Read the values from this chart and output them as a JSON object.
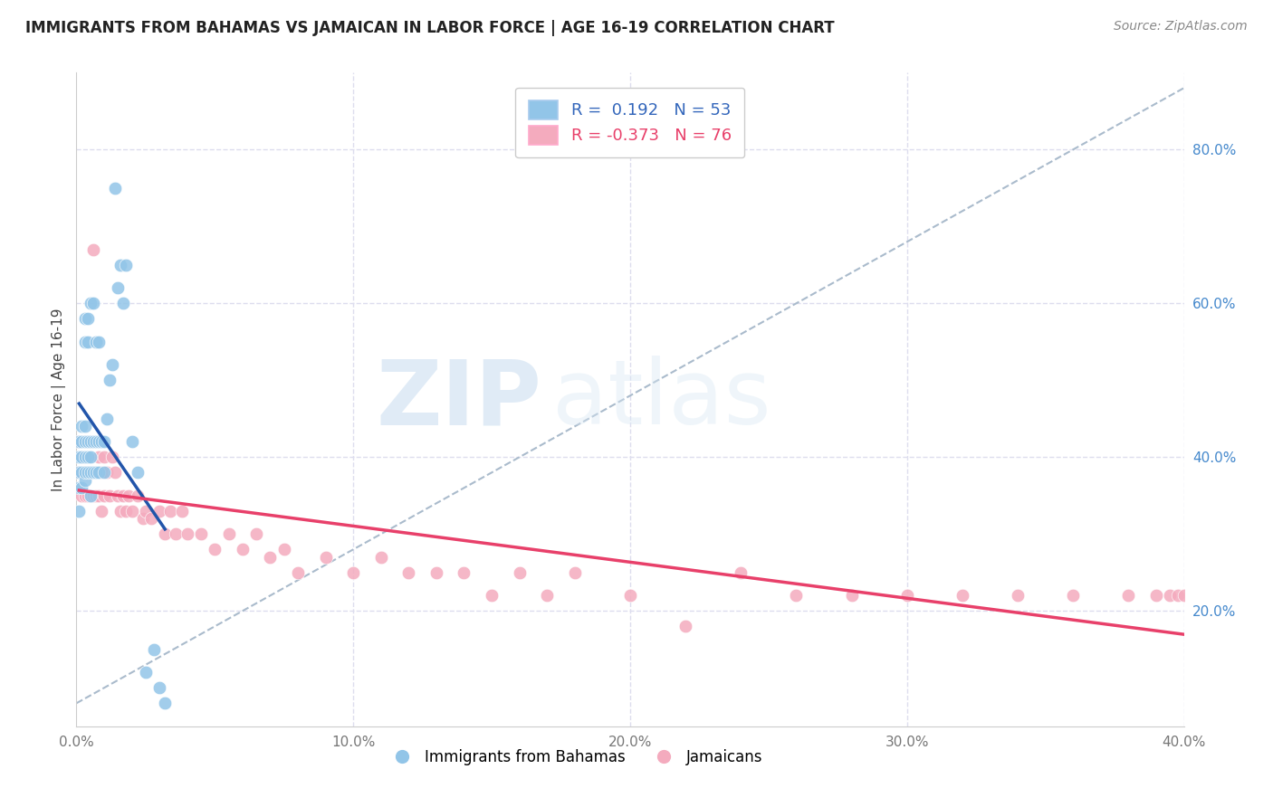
{
  "title": "IMMIGRANTS FROM BAHAMAS VS JAMAICAN IN LABOR FORCE | AGE 16-19 CORRELATION CHART",
  "source": "Source: ZipAtlas.com",
  "ylabel": "In Labor Force | Age 16-19",
  "xlim": [
    0.0,
    0.4
  ],
  "ylim": [
    0.05,
    0.9
  ],
  "xticks": [
    0.0,
    0.1,
    0.2,
    0.3,
    0.4
  ],
  "xtick_labels": [
    "0.0%",
    "10.0%",
    "20.0%",
    "30.0%",
    "40.0%"
  ],
  "yticks_right": [
    0.2,
    0.4,
    0.6,
    0.8
  ],
  "ytick_right_labels": [
    "20.0%",
    "40.0%",
    "60.0%",
    "80.0%"
  ],
  "legend_r_blue": "0.192",
  "legend_n_blue": "53",
  "legend_r_pink": "-0.373",
  "legend_n_pink": "76",
  "legend_label_blue": "Immigrants from Bahamas",
  "legend_label_pink": "Jamaicans",
  "blue_color": "#92C5E8",
  "pink_color": "#F4ABBE",
  "blue_line_color": "#2255AA",
  "pink_line_color": "#E8406A",
  "dashed_line_color": "#AABBCC",
  "blue_x": [
    0.001,
    0.001,
    0.001,
    0.001,
    0.001,
    0.002,
    0.002,
    0.002,
    0.002,
    0.002,
    0.003,
    0.003,
    0.003,
    0.003,
    0.003,
    0.003,
    0.003,
    0.004,
    0.004,
    0.004,
    0.004,
    0.004,
    0.005,
    0.005,
    0.005,
    0.005,
    0.005,
    0.006,
    0.006,
    0.006,
    0.007,
    0.007,
    0.007,
    0.008,
    0.008,
    0.008,
    0.009,
    0.01,
    0.01,
    0.011,
    0.012,
    0.013,
    0.014,
    0.015,
    0.016,
    0.017,
    0.018,
    0.02,
    0.022,
    0.025,
    0.028,
    0.03,
    0.032
  ],
  "blue_y": [
    0.33,
    0.36,
    0.38,
    0.4,
    0.42,
    0.36,
    0.38,
    0.4,
    0.42,
    0.44,
    0.37,
    0.38,
    0.4,
    0.42,
    0.44,
    0.55,
    0.58,
    0.38,
    0.4,
    0.42,
    0.55,
    0.58,
    0.35,
    0.38,
    0.4,
    0.42,
    0.6,
    0.38,
    0.42,
    0.6,
    0.38,
    0.42,
    0.55,
    0.38,
    0.42,
    0.55,
    0.42,
    0.38,
    0.42,
    0.45,
    0.5,
    0.52,
    0.75,
    0.62,
    0.65,
    0.6,
    0.65,
    0.42,
    0.38,
    0.12,
    0.15,
    0.1,
    0.08
  ],
  "pink_x": [
    0.001,
    0.001,
    0.002,
    0.002,
    0.003,
    0.003,
    0.003,
    0.004,
    0.004,
    0.004,
    0.005,
    0.005,
    0.005,
    0.006,
    0.006,
    0.006,
    0.007,
    0.007,
    0.008,
    0.008,
    0.009,
    0.009,
    0.01,
    0.01,
    0.011,
    0.012,
    0.013,
    0.014,
    0.015,
    0.016,
    0.017,
    0.018,
    0.019,
    0.02,
    0.022,
    0.024,
    0.025,
    0.027,
    0.03,
    0.032,
    0.034,
    0.036,
    0.038,
    0.04,
    0.045,
    0.05,
    0.055,
    0.06,
    0.065,
    0.07,
    0.075,
    0.08,
    0.09,
    0.1,
    0.11,
    0.12,
    0.13,
    0.14,
    0.15,
    0.16,
    0.17,
    0.18,
    0.2,
    0.22,
    0.24,
    0.26,
    0.28,
    0.3,
    0.32,
    0.34,
    0.36,
    0.38,
    0.39,
    0.395,
    0.398,
    0.4
  ],
  "pink_y": [
    0.38,
    0.42,
    0.35,
    0.4,
    0.35,
    0.38,
    0.42,
    0.35,
    0.38,
    0.42,
    0.35,
    0.38,
    0.42,
    0.35,
    0.38,
    0.67,
    0.35,
    0.38,
    0.35,
    0.4,
    0.33,
    0.38,
    0.35,
    0.4,
    0.38,
    0.35,
    0.4,
    0.38,
    0.35,
    0.33,
    0.35,
    0.33,
    0.35,
    0.33,
    0.35,
    0.32,
    0.33,
    0.32,
    0.33,
    0.3,
    0.33,
    0.3,
    0.33,
    0.3,
    0.3,
    0.28,
    0.3,
    0.28,
    0.3,
    0.27,
    0.28,
    0.25,
    0.27,
    0.25,
    0.27,
    0.25,
    0.25,
    0.25,
    0.22,
    0.25,
    0.22,
    0.25,
    0.22,
    0.18,
    0.25,
    0.22,
    0.22,
    0.22,
    0.22,
    0.22,
    0.22,
    0.22,
    0.22,
    0.22,
    0.22,
    0.22
  ]
}
